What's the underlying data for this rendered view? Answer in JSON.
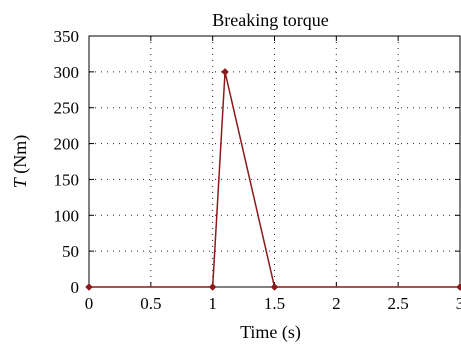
{
  "chart_data": {
    "type": "line",
    "title": "Breaking torque",
    "xlabel": "Time (s)",
    "ylabel_var": "T",
    "ylabel_unit": " (Nm)",
    "xlim": [
      0,
      3
    ],
    "ylim": [
      0,
      350
    ],
    "x_ticks": [
      0,
      0.5,
      1,
      1.5,
      2,
      2.5,
      3
    ],
    "x_tick_labels": [
      "0",
      "0.5",
      "1",
      "1.5",
      "2",
      "2.5",
      "3"
    ],
    "y_ticks": [
      0,
      50,
      100,
      150,
      200,
      250,
      300,
      350
    ],
    "y_tick_labels": [
      "0",
      "50",
      "100",
      "150",
      "200",
      "250",
      "300",
      "350"
    ],
    "grid": true,
    "series": [
      {
        "color": "#8b1a1a",
        "marker": "diamond",
        "x": [
          0,
          1,
          1.1,
          1.5,
          3
        ],
        "y": [
          0,
          0,
          300,
          0,
          0
        ]
      }
    ]
  }
}
